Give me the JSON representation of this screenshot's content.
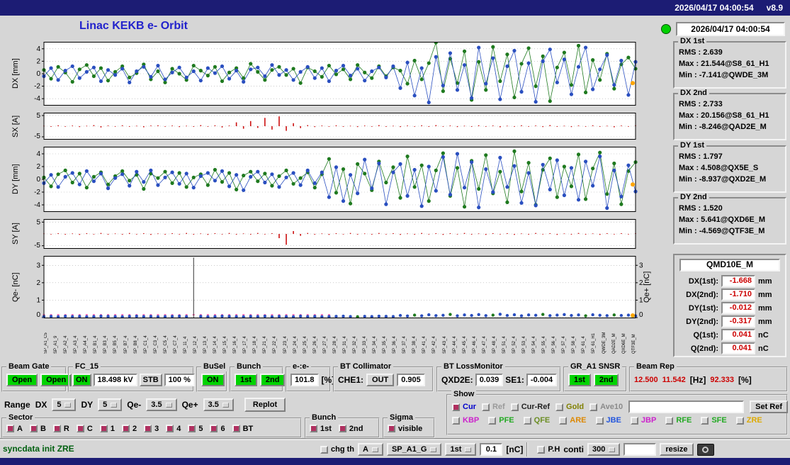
{
  "topbar": {
    "datetime": "2026/04/17 04:00:54",
    "version": "v8.9"
  },
  "header": {
    "title": "Linac KEKB e- Orbit",
    "led_color": "#00d000"
  },
  "status_panel": {
    "timestamp": "2026/04/17 04:00:54",
    "groups": [
      {
        "title": "DX 1st",
        "lines": [
          "RMS : 2.639",
          "Max : 21.544@S8_61_H1",
          "Min : -7.141@QWDE_3M"
        ]
      },
      {
        "title": "DX 2nd",
        "lines": [
          "RMS : 2.733",
          "Max : 20.156@S8_61_H1",
          "Min : -8.246@QAD2E_M"
        ]
      },
      {
        "title": "DY 1st",
        "lines": [
          "RMS : 1.797",
          "Max : 4.508@QX5E_S",
          "Min : -8.937@QXD2E_M"
        ]
      },
      {
        "title": "DY 2nd",
        "lines": [
          "RMS : 1.520",
          "Max : 5.641@QXD6E_M",
          "Min : -4.569@QTF3E_M"
        ]
      }
    ]
  },
  "qmd": {
    "title": "QMD10E_M",
    "rows": [
      {
        "label": "DX(1st):",
        "value": "-1.668",
        "unit": "mm"
      },
      {
        "label": "DX(2nd):",
        "value": "-1.710",
        "unit": "mm"
      },
      {
        "label": "DY(1st):",
        "value": "-0.012",
        "unit": "mm"
      },
      {
        "label": "DY(2nd):",
        "value": "-0.317",
        "unit": "mm"
      },
      {
        "label": "Q(1st):",
        "value": "0.041",
        "unit": "nC"
      },
      {
        "label": "Q(2nd):",
        "value": "0.041",
        "unit": "nC"
      }
    ]
  },
  "row1": {
    "beam_gate": {
      "title": "Beam Gate",
      "open1": "Open",
      "open2": "Open"
    },
    "fc15": {
      "title": "FC_15",
      "on": "ON",
      "kv": "18.498 kV",
      "stb": "STB",
      "pct": "100 %"
    },
    "busel": {
      "title": "BuSel",
      "on": "ON"
    },
    "bunch": {
      "title": "Bunch",
      "b1": "1st",
      "b2": "2nd"
    },
    "ee": {
      "title": "e-:e-",
      "value": "101.8",
      "unit": "[%]"
    },
    "btcol": {
      "title": "BT Collimator",
      "l1": "CHE1:",
      "v1": "OUT",
      "v2": "0.905"
    },
    "btloss": {
      "title": "BT LossMonitor",
      "l1": "QXD2E:",
      "v1": "0.039",
      "l2": "SE1:",
      "v2": "-0.004"
    },
    "gr": {
      "title": "GR_A1 SNSR",
      "b1": "1st",
      "b2": "2nd"
    },
    "brep": {
      "title": "Beam Rep",
      "v1": "12.500",
      "v2": "11.542",
      "u1": "[Hz]",
      "v3": "92.333",
      "u2": "[%]"
    }
  },
  "range_row": {
    "label": "Range",
    "dx_label": "DX",
    "dx": "5",
    "dy_label": "DY",
    "dy": "5",
    "qem_label": "Qe-",
    "qem": "3.5",
    "qep_label": "Qe+",
    "qep": "3.5",
    "replot": "Replot"
  },
  "show": {
    "title": "Show",
    "ref_input": "",
    "set_ref": "Set Ref",
    "row1": [
      {
        "label": "Cur",
        "color": "#0000cc",
        "checked": true
      },
      {
        "label": "Ref",
        "color": "#9a9a9a",
        "checked": false
      },
      {
        "label": "Cur-Ref",
        "color": "#222222",
        "checked": false
      },
      {
        "label": "Gold",
        "color": "#808000",
        "checked": false
      },
      {
        "label": "Ave10",
        "color": "#8a8a8a",
        "checked": false
      }
    ],
    "row2": [
      {
        "label": "KBP",
        "color": "#cc22cc",
        "checked": false
      },
      {
        "label": "PFE",
        "color": "#22aa22",
        "checked": false
      },
      {
        "label": "QFE",
        "color": "#6b8e23",
        "checked": false
      },
      {
        "label": "ARE",
        "color": "#dd8800",
        "checked": false
      },
      {
        "label": "JBE",
        "color": "#2255dd",
        "checked": false
      },
      {
        "label": "JBP",
        "color": "#cc22cc",
        "checked": false
      },
      {
        "label": "RFE",
        "color": "#22aa22",
        "checked": false
      },
      {
        "label": "SFE",
        "color": "#22aa22",
        "checked": false
      },
      {
        "label": "ZRE",
        "color": "#ddaa00",
        "checked": false
      }
    ]
  },
  "sector": {
    "title": "Sector",
    "items": [
      {
        "label": "A",
        "checked": true
      },
      {
        "label": "B",
        "checked": true
      },
      {
        "label": "R",
        "checked": true
      },
      {
        "label": "C",
        "checked": true
      },
      {
        "label": "1",
        "checked": true
      },
      {
        "label": "2",
        "checked": true
      },
      {
        "label": "3",
        "checked": true
      },
      {
        "label": "4",
        "checked": true
      },
      {
        "label": "5",
        "checked": true
      },
      {
        "label": "6",
        "checked": true
      },
      {
        "label": "BT",
        "checked": true
      }
    ]
  },
  "bunch2": {
    "title": "Bunch",
    "items": [
      {
        "label": "1st",
        "checked": true
      },
      {
        "label": "2nd",
        "checked": true
      }
    ]
  },
  "sigma": {
    "title": "Sigma",
    "items": [
      {
        "label": "visible",
        "checked": true
      }
    ]
  },
  "statusbar": {
    "message": "syncdata init ZRE",
    "chg_th": "chg th",
    "chg_th_checked": false,
    "mode": "A",
    "sp": "SP_A1_G",
    "bunch": "1st",
    "th_value": "0.1",
    "th_unit": "[nC]",
    "ph": "P.H",
    "ph_checked": false,
    "conti": "conti",
    "count": "300",
    "entry": "",
    "resize": "resize"
  },
  "xaxis_labels": [
    "SP_A1_C5",
    "SP_A1_9",
    "SP_A2_4",
    "SP_A3_4",
    "SP_A4_4",
    "SP_B1_4",
    "SP_B3_4",
    "SP_B5_4",
    "SP_B7_4",
    "SP_B8_4",
    "SP_C1_4",
    "SP_C3_4",
    "SP_C5_4",
    "SP_C7_4",
    "SP_11_4",
    "SP_12_4",
    "SP_13_4",
    "SP_14_4",
    "SP_15_4",
    "SP_16_4",
    "SP_17_4",
    "SP_18_4",
    "SP_21_4",
    "SP_22_4",
    "SP_23_4",
    "SP_24_4",
    "SP_25_4",
    "SP_26_4",
    "SP_27_4",
    "SP_28_4",
    "SP_31_4",
    "SP_32_4",
    "SP_33_4",
    "SP_34_4",
    "SP_35_4",
    "SP_36_4",
    "SP_37_4",
    "SP_38_4",
    "SP_41_4",
    "SP_42_4",
    "SP_43_4",
    "SP_44_4",
    "SP_45_4",
    "SP_46_4",
    "SP_47_4",
    "SP_48_4",
    "SP_51_4",
    "SP_52_4",
    "SP_53_4",
    "SP_54_4",
    "SP_55_4",
    "SP_56_4",
    "SP_57_4",
    "SP_58_4",
    "SP_61_4",
    "SP_61_H1",
    "QWDE_3M",
    "QAD2E_M",
    "QXD6E_M",
    "QTF3E_M"
  ],
  "chart_data": [
    {
      "id": "dx",
      "type": "line-scatter",
      "ylabel": "DX [mm]",
      "ylim": [
        -5,
        5
      ],
      "yticks": [
        4,
        2,
        0,
        -2,
        -4
      ],
      "series": [
        {
          "name": "1st",
          "color": "#1f7a1f",
          "values": [
            0.6,
            -0.8,
            1.1,
            0.2,
            -1.3,
            0.7,
            1.4,
            -0.4,
            0.9,
            -1.1,
            0.3,
            1.2,
            -0.6,
            0.1,
            1.5,
            -0.9,
            0.4,
            -1.4,
            0.8,
            0.0,
            -1.0,
            1.3,
            0.5,
            -0.3,
            1.1,
            -1.2,
            0.2,
            0.9,
            -0.7,
            1.6,
            0.3,
            -1.0,
            0.6,
            1.1,
            -0.2,
            0.8,
            -1.5,
            1.0,
            0.4,
            -0.5,
            1.3,
            -0.1,
            0.7,
            -0.9,
            1.4,
            0.2,
            -0.7,
            1.2,
            -0.4,
            1.0,
            0.5,
            -1.6,
            2.1,
            -0.9,
            1.7,
            6.8,
            -2.8,
            2.4,
            -1.5,
            3.6,
            -4.2,
            1.9,
            -2.6,
            4.3,
            -1.2,
            3.1,
            -3.8,
            1.6,
            4.1,
            -2.0,
            2.8,
            -4.4,
            1.0,
            3.4,
            -1.8,
            4.5,
            -3.0,
            2.2,
            -1.0,
            3.2,
            -2.4,
            1.5,
            2.6,
            0.8
          ]
        },
        {
          "name": "2nd",
          "color": "#2a4fc0",
          "values": [
            -0.4,
            0.9,
            -1.0,
            0.5,
            1.2,
            -0.7,
            0.3,
            1.0,
            -1.2,
            0.6,
            -0.2,
            0.8,
            -1.4,
            0.4,
            1.1,
            -0.5,
            1.3,
            -0.9,
            0.2,
            1.0,
            -0.6,
            0.4,
            -1.1,
            0.9,
            0.1,
            1.2,
            -0.8,
            0.5,
            -1.3,
            0.7,
            1.0,
            -0.4,
            1.4,
            -0.2,
            0.6,
            -1.0,
            0.3,
            1.1,
            -0.7,
            0.9,
            -1.2,
            0.5,
            1.3,
            -0.3,
            0.8,
            -1.1,
            0.4,
            1.0,
            -0.6,
            1.2,
            -2.3,
            1.8,
            -3.5,
            0.9,
            -4.6,
            2.7,
            -1.9,
            3.3,
            -2.6,
            1.4,
            -3.9,
            4.2,
            -1.6,
            2.5,
            -4.1,
            1.2,
            3.7,
            -2.9,
            1.7,
            -4.5,
            2.0,
            3.9,
            -1.4,
            2.3,
            -3.3,
            1.1,
            4.2,
            -2.5,
            0.7,
            3.0,
            -1.8,
            2.1,
            -3.4,
            1.9
          ]
        }
      ],
      "end_marker": {
        "value": -1.5,
        "color": "#ffa500"
      }
    },
    {
      "id": "sx",
      "type": "bar",
      "ylabel": "SX [A]",
      "ylim": [
        -6,
        6
      ],
      "yticks": [
        5,
        -5
      ],
      "color": "#cc1111",
      "values": [
        0.2,
        -0.3,
        0.4,
        -0.2,
        0.3,
        -0.4,
        0.2,
        0.5,
        -0.6,
        0.3,
        -0.2,
        0.4,
        -0.3,
        0.2,
        -0.5,
        0.3,
        0.4,
        -0.2,
        0.3,
        -0.4,
        0.2,
        -0.3,
        0.5,
        -0.2,
        0.4,
        -0.6,
        0.3,
        1.8,
        -1.2,
        2.4,
        -0.8,
        3.9,
        -1.6,
        4.6,
        -2.2,
        1.4,
        -0.9,
        0.5,
        -0.4,
        0.3,
        -0.2,
        0.4,
        -0.3,
        0.2,
        -0.4,
        0.3,
        -0.2,
        0.5,
        -0.3,
        0.2,
        -0.4,
        0.3,
        -0.2,
        0.4,
        -0.3,
        0.5,
        -0.2,
        0.3,
        -0.4,
        0.2,
        -0.3,
        0.4,
        -0.2,
        0.3,
        -0.5,
        0.2,
        -0.3,
        0.4,
        -0.2,
        0.3,
        -0.4,
        0.5,
        -0.3,
        0.2,
        -0.4,
        0.3,
        -0.2,
        0.4,
        -0.3,
        0.2,
        -0.5,
        0.3,
        -0.2,
        0.4
      ]
    },
    {
      "id": "dy",
      "type": "line-scatter",
      "ylabel": "DY [mm]",
      "ylim": [
        -5,
        5
      ],
      "yticks": [
        4,
        2,
        0,
        -2,
        -4
      ],
      "series": [
        {
          "name": "1st",
          "color": "#1f7a1f",
          "values": [
            0.3,
            -1.1,
            0.8,
            1.4,
            -0.5,
            0.9,
            -1.3,
            0.4,
            1.1,
            -0.8,
            0.5,
            1.3,
            -0.2,
            0.7,
            -1.5,
            0.9,
            0.2,
            1.2,
            -0.6,
            1.0,
            -1.2,
            0.3,
            0.8,
            -0.9,
            1.5,
            -0.4,
            1.0,
            -1.6,
            0.6,
            1.2,
            -0.3,
            0.9,
            -1.0,
            0.5,
            1.4,
            -0.7,
            0.2,
            1.1,
            -1.3,
            0.8,
            3.2,
            -2.1,
            1.6,
            -3.8,
            2.4,
            0.9,
            -1.7,
            2.8,
            -0.5,
            1.9,
            -2.9,
            3.6,
            -1.2,
            2.2,
            -3.4,
            1.4,
            4.1,
            -2.6,
            1.8,
            -4.3,
            2.9,
            -1.5,
            3.8,
            -2.2,
            1.2,
            -3.6,
            4.4,
            -1.9,
            2.6,
            -4.0,
            1.5,
            3.3,
            -2.8,
            2.0,
            -1.1,
            3.9,
            -3.1,
            1.7,
            4.2,
            -2.3,
            2.5,
            -3.9,
            1.3,
            2.7
          ]
        },
        {
          "name": "2nd",
          "color": "#2a4fc0",
          "values": [
            -0.6,
            0.7,
            -1.2,
            0.4,
            1.0,
            -0.8,
            1.3,
            -0.3,
            0.9,
            -1.4,
            0.2,
            0.8,
            -1.0,
            1.2,
            -0.4,
            1.4,
            -0.9,
            0.3,
            1.1,
            -0.7,
            0.9,
            -1.3,
            0.5,
            1.0,
            -0.2,
            1.3,
            -1.1,
            0.7,
            -1.7,
            0.4,
            1.2,
            -0.5,
            0.8,
            -1.2,
            0.3,
            1.0,
            -0.9,
            1.4,
            -0.6,
            1.1,
            -2.8,
            1.9,
            -3.4,
            0.7,
            -2.2,
            3.1,
            -1.4,
            2.5,
            -3.9,
            1.1,
            2.4,
            -2.6,
            1.5,
            -4.2,
            2.0,
            -1.8,
            3.5,
            -2.4,
            4.0,
            -1.3,
            2.7,
            -4.4,
            1.6,
            -2.0,
            3.4,
            -1.2,
            2.1,
            -3.7,
            1.0,
            -4.1,
            2.3,
            -1.6,
            3.0,
            -2.5,
            1.8,
            -3.2,
            2.8,
            -1.0,
            3.6,
            -4.5,
            1.4,
            -2.7,
            2.2,
            -1.9
          ]
        }
      ],
      "end_marker": {
        "value": -0.8,
        "color": "#ffa500"
      }
    },
    {
      "id": "sy",
      "type": "bar",
      "ylabel": "SY [A]",
      "ylim": [
        -6,
        6
      ],
      "yticks": [
        5,
        -5
      ],
      "color": "#cc1111",
      "values": [
        0.2,
        -0.2,
        0.3,
        -0.3,
        0.2,
        -0.4,
        0.3,
        -0.2,
        0.4,
        -0.3,
        0.2,
        -0.3,
        0.4,
        -0.2,
        0.3,
        -0.4,
        0.2,
        -0.3,
        0.3,
        -0.2,
        0.4,
        -0.3,
        0.2,
        -0.4,
        0.3,
        -0.2,
        0.4,
        -0.3,
        0.2,
        -0.3,
        0.4,
        -0.2,
        0.3,
        -1.8,
        -4.6,
        1.2,
        -0.8,
        0.4,
        -0.3,
        0.2,
        -0.4,
        0.3,
        -0.2,
        0.4,
        -0.3,
        0.2,
        -0.3,
        0.4,
        -0.2,
        0.3,
        -0.4,
        0.2,
        -0.3,
        0.4,
        -0.2,
        0.3,
        -0.4,
        0.3,
        -0.2,
        0.4,
        -0.3,
        0.2,
        -0.4,
        0.3,
        -0.2,
        0.3,
        -0.4,
        0.2,
        -0.3,
        0.4,
        -0.2,
        0.3,
        -0.4,
        0.2,
        -0.3,
        0.4,
        -0.3,
        0.2,
        -0.4,
        0.3,
        -0.2,
        0.3,
        -0.2,
        0.3
      ]
    },
    {
      "id": "qe",
      "type": "scatter",
      "ylabel": "Qe- [nC]",
      "ylabel_right": "Qe+ [nC]",
      "ylim": [
        0,
        3.5
      ],
      "yticks": [
        3,
        2,
        1,
        0
      ],
      "right_ticks": true,
      "series": [
        {
          "name": "charge",
          "color": "#2a4fc0",
          "values": [
            0.06,
            0.07,
            0.05,
            0.08,
            0.06,
            0.07,
            0.05,
            0.06,
            0.08,
            0.07,
            0.06,
            0.05,
            0.07,
            0.08,
            0.06,
            0.07,
            0.05,
            0.06,
            0.07,
            0.08,
            0.06,
            3.45,
            0.07,
            0.05,
            0.06,
            0.08,
            0.07,
            0.06,
            0.05,
            0.07,
            0.06,
            0.08,
            0.05,
            0.07,
            0.06,
            0.05,
            0.08,
            0.06,
            0.07,
            0.05,
            0.06,
            0.07,
            0.08,
            0.06,
            0.05,
            0.07,
            0.06,
            0.08,
            0.07,
            0.06,
            0.12,
            0.09,
            0.14,
            0.1,
            0.16,
            0.11,
            0.13,
            0.18,
            0.1,
            0.15,
            0.12,
            0.17,
            0.11,
            0.14,
            0.19,
            0.12,
            0.16,
            0.1,
            0.15,
            0.13,
            0.18,
            0.11,
            0.14,
            0.17,
            0.12,
            0.15,
            0.1,
            0.16,
            0.13,
            0.11,
            0.15,
            0.12,
            0.14,
            0.1
          ]
        }
      ],
      "green_indices": [
        44,
        52,
        57,
        63,
        70,
        76,
        80
      ],
      "green_color": "#1f7a1f",
      "spike_index": 21,
      "spike_color": "#333333",
      "pink_ticks": [
        0,
        40
      ],
      "pink_color": "#ff77bb",
      "end_marker": {
        "value": 0.12,
        "color": "#ffa500"
      }
    }
  ]
}
